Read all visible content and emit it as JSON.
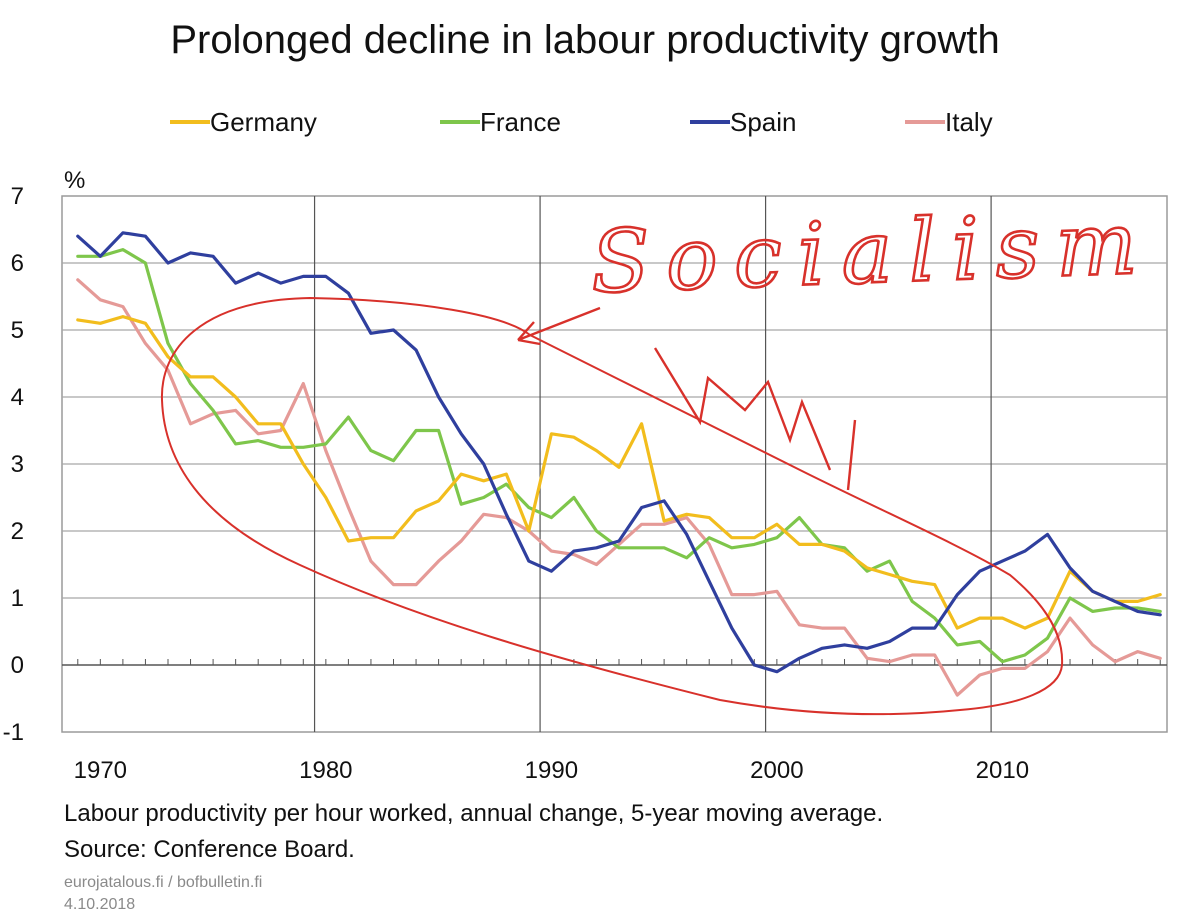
{
  "chart_data": {
    "type": "line",
    "title": "Prolonged decline in labour productivity growth",
    "ylabel": "%",
    "xlim": [
      1968.3,
      2017.3
    ],
    "ylim": [
      -1,
      7
    ],
    "y_ticks": [
      "-1",
      "0",
      "1",
      "2",
      "3",
      "4",
      "5",
      "6",
      "7"
    ],
    "x_tick_labels": [
      "1970",
      "1980",
      "1990",
      "2000",
      "2010"
    ],
    "grid": true,
    "legend_position": "top",
    "series": [
      {
        "name": "Germany",
        "color": "#f2bd1d",
        "x": [
          1969,
          1970,
          1971,
          1972,
          1973,
          1974,
          1975,
          1976,
          1977,
          1978,
          1979,
          1980,
          1981,
          1982,
          1983,
          1984,
          1985,
          1986,
          1987,
          1988,
          1989,
          1990,
          1991,
          1992,
          1993,
          1994,
          1995,
          1996,
          1997,
          1998,
          1999,
          2000,
          2001,
          2002,
          2003,
          2004,
          2005,
          2006,
          2007,
          2008,
          2009,
          2010,
          2011,
          2012,
          2013,
          2014,
          2015,
          2016,
          2017
        ],
        "values": [
          5.15,
          5.1,
          5.2,
          5.1,
          4.6,
          4.3,
          4.3,
          4.0,
          3.6,
          3.6,
          3.0,
          2.5,
          1.85,
          1.9,
          1.9,
          2.3,
          2.45,
          2.85,
          2.75,
          2.85,
          2.0,
          3.45,
          3.4,
          3.2,
          2.95,
          3.6,
          2.15,
          2.25,
          2.2,
          1.9,
          1.9,
          2.1,
          1.8,
          1.8,
          1.7,
          1.45,
          1.35,
          1.25,
          1.2,
          0.55,
          0.7,
          0.7,
          0.55,
          0.7,
          1.4,
          1.1,
          0.95,
          0.95,
          1.05
        ]
      },
      {
        "name": "France",
        "color": "#7ec64b",
        "x": [
          1969,
          1970,
          1971,
          1972,
          1973,
          1974,
          1975,
          1976,
          1977,
          1978,
          1979,
          1980,
          1981,
          1982,
          1983,
          1984,
          1985,
          1986,
          1987,
          1988,
          1989,
          1990,
          1991,
          1992,
          1993,
          1994,
          1995,
          1996,
          1997,
          1998,
          1999,
          2000,
          2001,
          2002,
          2003,
          2004,
          2005,
          2006,
          2007,
          2008,
          2009,
          2010,
          2011,
          2012,
          2013,
          2014,
          2015,
          2016,
          2017
        ],
        "values": [
          6.1,
          6.1,
          6.2,
          6.0,
          4.8,
          4.2,
          3.8,
          3.3,
          3.35,
          3.25,
          3.25,
          3.3,
          3.7,
          3.2,
          3.05,
          3.5,
          3.5,
          2.4,
          2.5,
          2.7,
          2.35,
          2.2,
          2.5,
          2.0,
          1.75,
          1.75,
          1.75,
          1.6,
          1.9,
          1.75,
          1.8,
          1.9,
          2.2,
          1.8,
          1.75,
          1.4,
          1.55,
          0.95,
          0.7,
          0.3,
          0.35,
          0.05,
          0.15,
          0.4,
          1.0,
          0.8,
          0.85,
          0.85,
          0.8
        ]
      },
      {
        "name": "Spain",
        "color": "#2f3f9e",
        "x": [
          1969,
          1970,
          1971,
          1972,
          1973,
          1974,
          1975,
          1976,
          1977,
          1978,
          1979,
          1980,
          1981,
          1982,
          1983,
          1984,
          1985,
          1986,
          1987,
          1988,
          1989,
          1990,
          1991,
          1992,
          1993,
          1994,
          1995,
          1996,
          1997,
          1998,
          1999,
          2000,
          2001,
          2002,
          2003,
          2004,
          2005,
          2006,
          2007,
          2008,
          2009,
          2010,
          2011,
          2012,
          2013,
          2014,
          2015,
          2016,
          2017
        ],
        "values": [
          6.4,
          6.1,
          6.45,
          6.4,
          6.0,
          6.15,
          6.1,
          5.7,
          5.85,
          5.7,
          5.8,
          5.8,
          5.55,
          4.95,
          5.0,
          4.7,
          4.0,
          3.45,
          3.0,
          2.25,
          1.55,
          1.4,
          1.7,
          1.75,
          1.85,
          2.35,
          2.45,
          1.95,
          1.25,
          0.55,
          0.0,
          -0.1,
          0.1,
          0.25,
          0.3,
          0.25,
          0.35,
          0.55,
          0.55,
          1.05,
          1.4,
          1.55,
          1.7,
          1.95,
          1.45,
          1.1,
          0.95,
          0.8,
          0.75
        ]
      },
      {
        "name": "Italy",
        "color": "#e59a97",
        "x": [
          1969,
          1970,
          1971,
          1972,
          1973,
          1974,
          1975,
          1976,
          1977,
          1978,
          1979,
          1980,
          1981,
          1982,
          1983,
          1984,
          1985,
          1986,
          1987,
          1988,
          1989,
          1990,
          1991,
          1992,
          1993,
          1994,
          1995,
          1996,
          1997,
          1998,
          1999,
          2000,
          2001,
          2002,
          2003,
          2004,
          2005,
          2006,
          2007,
          2008,
          2009,
          2010,
          2011,
          2012,
          2013,
          2014,
          2015,
          2016,
          2017
        ],
        "values": [
          5.75,
          5.45,
          5.35,
          4.8,
          4.4,
          3.6,
          3.75,
          3.8,
          3.45,
          3.5,
          4.2,
          3.2,
          2.35,
          1.55,
          1.2,
          1.2,
          1.55,
          1.85,
          2.25,
          2.2,
          2.0,
          1.7,
          1.65,
          1.5,
          1.8,
          2.1,
          2.1,
          2.2,
          1.8,
          1.05,
          1.05,
          1.1,
          0.6,
          0.55,
          0.55,
          0.1,
          0.05,
          0.15,
          0.15,
          -0.45,
          -0.15,
          -0.05,
          -0.05,
          0.2,
          0.7,
          0.3,
          0.05,
          0.2,
          0.1
        ]
      }
    ],
    "annotations": [
      "Socialism"
    ]
  },
  "footer": {
    "caption": "Labour productivity per hour worked, annual change, 5-year moving average.",
    "source": "Source: Conference Board.",
    "websites": "eurojatalous.fi  / bofbulletin.fi",
    "date": "4.10.2018"
  }
}
